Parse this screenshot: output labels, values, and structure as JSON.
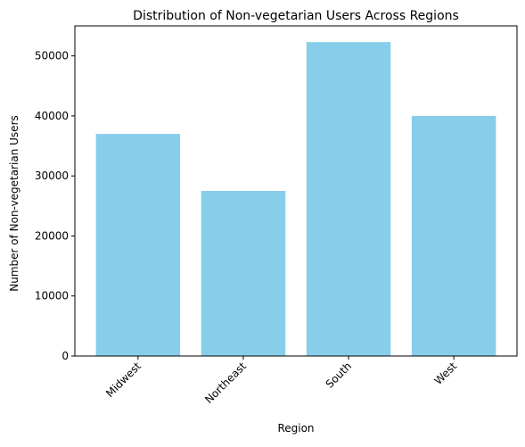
{
  "chart_data": {
    "type": "bar",
    "title": "Distribution of Non-vegetarian Users Across Regions",
    "xlabel": "Region",
    "ylabel": "Number of Non-vegetarian Users",
    "categories": [
      "Midwest",
      "Northeast",
      "South",
      "West"
    ],
    "values": [
      37000,
      27500,
      52300,
      40000
    ],
    "ylim": [
      0,
      55000
    ],
    "yticks": [
      0,
      10000,
      20000,
      30000,
      40000,
      50000
    ],
    "grid": false,
    "legend": "none",
    "bar_color": "#87CEEB",
    "xtick_rotation_deg": 45
  }
}
